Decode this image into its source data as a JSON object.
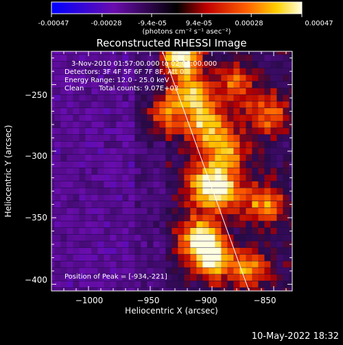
{
  "colorbar": {
    "tick_labels": [
      "-0.00047",
      "-0.00028",
      "-9.4e-05",
      "9.4e-05",
      "0.00028",
      "0.00047"
    ],
    "tick_values": [
      -0.00047,
      -0.00028,
      -9.4e-05,
      9.4e-05,
      0.00028,
      0.00047
    ],
    "range": [
      -0.00047,
      0.00047
    ],
    "unit_label": "(photons cm⁻² s⁻¹ asec⁻²)",
    "colors": [
      "#0000ff",
      "#6a0dad",
      "#000000",
      "#c00000",
      "#ff6000",
      "#ffd000",
      "#ffffe0"
    ]
  },
  "chart_data": {
    "type": "heatmap",
    "title": "Reconstructed RHESSI Image",
    "xlabel": "Heliocentric X (arcsec)",
    "ylabel": "Heliocentric Y (arcsec)",
    "xlim": [
      -1030,
      -835
    ],
    "ylim": [
      -405,
      -225
    ],
    "x_ticks": [
      -1000,
      -950,
      -900,
      -850
    ],
    "x_tick_labels": [
      "−1000",
      "−950",
      "−900",
      "−850"
    ],
    "y_ticks": [
      -250,
      -300,
      -350,
      -400
    ],
    "y_tick_labels": [
      "−250",
      "−300",
      "−350",
      "−400"
    ],
    "limb_line": {
      "x": [
        -940,
        -870
      ],
      "y": [
        -225,
        -405
      ]
    },
    "peak_position": [
      -934,
      -221
    ],
    "bright_regions": [
      {
        "x": -925,
        "y": -228,
        "value": 0.00047
      },
      {
        "x": -915,
        "y": -258,
        "value": 0.0003
      },
      {
        "x": -905,
        "y": -282,
        "value": 0.00028
      },
      {
        "x": -888,
        "y": -300,
        "value": 0.00025
      },
      {
        "x": -905,
        "y": -325,
        "value": 0.0003
      },
      {
        "x": -890,
        "y": -330,
        "value": 0.00025
      },
      {
        "x": -858,
        "y": -340,
        "value": 0.00022
      },
      {
        "x": -910,
        "y": -365,
        "value": 0.00033
      },
      {
        "x": -900,
        "y": -380,
        "value": 0.00036
      },
      {
        "x": -870,
        "y": -390,
        "value": 0.0002
      },
      {
        "x": -940,
        "y": -272,
        "value": 0.0002
      },
      {
        "x": -855,
        "y": -272,
        "value": 0.00018
      },
      {
        "x": -880,
        "y": -250,
        "value": 0.00017
      }
    ],
    "annotations": [
      "3-Nov-2010 01:57:00.000 to 02:03:00.000",
      "Detectors: 3F 4F 5F 6F 7F 8F, Att 0",
      "Energy Range: 12.0 - 25.0 keV",
      "Clean",
      "Total counts: 9.07E+03",
      "Position of Peak = [-934,-221]"
    ]
  },
  "footer": {
    "timestamp": "10-May-2022 18:32"
  }
}
